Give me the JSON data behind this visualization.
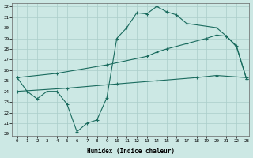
{
  "xlabel": "Humidex (Indice chaleur)",
  "xlim_min": -0.5,
  "xlim_max": 23.3,
  "ylim_min": 19.8,
  "ylim_max": 32.3,
  "xticks": [
    0,
    1,
    2,
    3,
    4,
    5,
    6,
    7,
    8,
    9,
    10,
    11,
    12,
    13,
    14,
    15,
    16,
    17,
    18,
    19,
    20,
    21,
    22,
    23
  ],
  "yticks": [
    20,
    21,
    22,
    23,
    24,
    25,
    26,
    27,
    28,
    29,
    30,
    31,
    32
  ],
  "bg_color": "#cce8e4",
  "line_color": "#1a6b5e",
  "grid_color": "#aaceca",
  "line1_x": [
    0,
    1,
    2,
    3,
    4,
    5,
    6,
    7,
    8,
    9,
    10,
    11,
    12,
    13,
    14,
    15,
    16,
    17,
    20,
    21,
    22,
    23
  ],
  "line1_y": [
    25.3,
    24.0,
    23.3,
    24.0,
    24.0,
    22.8,
    20.2,
    21.0,
    21.3,
    23.4,
    29.0,
    30.0,
    31.4,
    31.3,
    32.0,
    31.5,
    31.2,
    30.4,
    30.0,
    29.2,
    28.3,
    25.2
  ],
  "line2_x": [
    0,
    4,
    9,
    13,
    14,
    15,
    17,
    19,
    20,
    21,
    22,
    23
  ],
  "line2_y": [
    25.3,
    25.7,
    26.5,
    27.3,
    27.7,
    28.0,
    28.5,
    29.0,
    29.3,
    29.2,
    28.2,
    25.2
  ],
  "line3_x": [
    0,
    5,
    10,
    14,
    18,
    20,
    23
  ],
  "line3_y": [
    24.0,
    24.3,
    24.7,
    25.0,
    25.3,
    25.5,
    25.3
  ]
}
